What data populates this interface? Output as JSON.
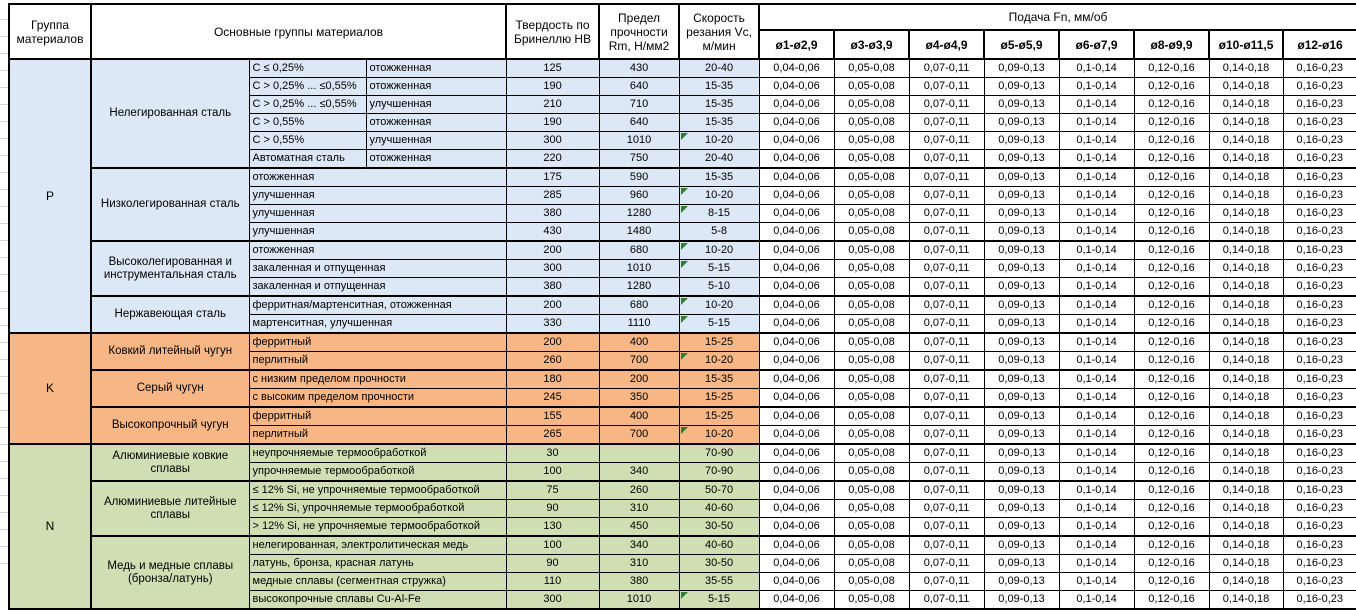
{
  "colors": {
    "group_P_fill": "#dce8f5",
    "group_K_fill": "#f7b685",
    "group_N_fill": "#d0dfb3",
    "error_indicator": "#2e7d32",
    "grid_border": "#000000"
  },
  "header": {
    "group": "Группа материалов",
    "main": "Основные группы материалов",
    "hb": "Твердость по Бринеллю HB",
    "rm": "Предел прочности Rm, Н/мм2",
    "vc": "Скорость резания Vc, м/мин",
    "feed": "Подача Fn, мм/об",
    "feed_cols": [
      "ø1-ø2,9",
      "ø3-ø3,9",
      "ø4-ø4,9",
      "ø5-ø5,9",
      "ø6-ø7,9",
      "ø8-ø9,9",
      "ø10-ø11,5",
      "ø12-ø16"
    ]
  },
  "feed_values": [
    "0,04-0,06",
    "0,05-0,08",
    "0,07-0,11",
    "0,09-0,13",
    "0,1-0,14",
    "0,12-0,16",
    "0,14-0,18",
    "0,16-0,23"
  ],
  "groups": [
    {
      "code": "P",
      "subgroups": [
        {
          "name": "Нелегированная сталь",
          "split": true,
          "rows": [
            {
              "spec": "C ≤ 0,25%",
              "state": "отожженная",
              "hb": "125",
              "rm": "430",
              "vc": "20-40",
              "tri": false
            },
            {
              "spec": "C > 0,25% ... ≤0,55%",
              "state": "отожженная",
              "hb": "190",
              "rm": "640",
              "vc": "15-35",
              "tri": false
            },
            {
              "spec": "C > 0,25% ... ≤0,55%",
              "state": "улучшенная",
              "hb": "210",
              "rm": "710",
              "vc": "15-35",
              "tri": false
            },
            {
              "spec": "C > 0,55%",
              "state": "отожженная",
              "hb": "190",
              "rm": "640",
              "vc": "15-35",
              "tri": false
            },
            {
              "spec": "C > 0,55%",
              "state": "улучшенная",
              "hb": "300",
              "rm": "1010",
              "vc": "10-20",
              "tri": true
            },
            {
              "spec": "Автоматная сталь",
              "state": "отожженная",
              "hb": "220",
              "rm": "750",
              "vc": "20-40",
              "tri": false
            }
          ]
        },
        {
          "name": "Низколегированная сталь",
          "split": false,
          "rows": [
            {
              "desc": "отожженная",
              "hb": "175",
              "rm": "590",
              "vc": "15-35",
              "tri": false
            },
            {
              "desc": "улучшенная",
              "hb": "285",
              "rm": "960",
              "vc": "10-20",
              "tri": true
            },
            {
              "desc": "улучшенная",
              "hb": "380",
              "rm": "1280",
              "vc": "8-15",
              "tri": true
            },
            {
              "desc": "улучшенная",
              "hb": "430",
              "rm": "1480",
              "vc": "5-8",
              "tri": false
            }
          ]
        },
        {
          "name": "Высоколегированная и инструментальная сталь",
          "split": false,
          "rows": [
            {
              "desc": "отожженная",
              "hb": "200",
              "rm": "680",
              "vc": "10-20",
              "tri": true
            },
            {
              "desc": "закаленная и отпущенная",
              "hb": "300",
              "rm": "1010",
              "vc": "5-15",
              "tri": true
            },
            {
              "desc": "закаленная и отпущенная",
              "hb": "380",
              "rm": "1280",
              "vc": "5-10",
              "tri": false
            }
          ]
        },
        {
          "name": "Нержавеющая сталь",
          "split": false,
          "rows": [
            {
              "desc": "ферритная/мартенситная, отожженная",
              "hb": "200",
              "rm": "680",
              "vc": "10-20",
              "tri": true
            },
            {
              "desc": "мартенситная, улучшенная",
              "hb": "330",
              "rm": "1110",
              "vc": "5-15",
              "tri": true
            }
          ]
        }
      ]
    },
    {
      "code": "K",
      "subgroups": [
        {
          "name": "Ковкий литейный чугун",
          "split": false,
          "rows": [
            {
              "desc": "ферритный",
              "hb": "200",
              "rm": "400",
              "vc": "15-25",
              "tri": false
            },
            {
              "desc": "перлитный",
              "hb": "260",
              "rm": "700",
              "vc": "10-20",
              "tri": true
            }
          ]
        },
        {
          "name": "Серый чугун",
          "split": false,
          "rows": [
            {
              "desc": "с низким пределом прочности",
              "hb": "180",
              "rm": "200",
              "vc": "15-35",
              "tri": false
            },
            {
              "desc": "с высоким пределом прочности",
              "hb": "245",
              "rm": "350",
              "vc": "15-25",
              "tri": false
            }
          ]
        },
        {
          "name": "Высокопрочный чугун",
          "split": false,
          "rows": [
            {
              "desc": "ферритный",
              "hb": "155",
              "rm": "400",
              "vc": "15-25",
              "tri": false
            },
            {
              "desc": "перлитный",
              "hb": "265",
              "rm": "700",
              "vc": "10-20",
              "tri": true
            }
          ]
        }
      ]
    },
    {
      "code": "N",
      "subgroups": [
        {
          "name": "Алюминиевые ковкие сплавы",
          "split": false,
          "rows": [
            {
              "desc": "неупрочняемые термообработкой",
              "hb": "30",
              "rm": "",
              "vc": "70-90",
              "tri": false
            },
            {
              "desc": "упрочняемые термообработкой",
              "hb": "100",
              "rm": "340",
              "vc": "70-90",
              "tri": false
            }
          ]
        },
        {
          "name": "Алюминиевые литейные сплавы",
          "split": false,
          "rows": [
            {
              "desc": "≤ 12% Si, не упрочняемые термообработкой",
              "hb": "75",
              "rm": "260",
              "vc": "50-70",
              "tri": false
            },
            {
              "desc": "≤ 12% Si, упрочняемые термообработкой",
              "hb": "90",
              "rm": "310",
              "vc": "40-60",
              "tri": false
            },
            {
              "desc": "> 12% Si, не упрочняемые термообработкой",
              "hb": "130",
              "rm": "450",
              "vc": "30-50",
              "tri": false
            }
          ]
        },
        {
          "name": "Медь и медные сплавы (бронза/латунь)",
          "split": false,
          "rows": [
            {
              "desc": "нелегированная, электролитическая медь",
              "hb": "100",
              "rm": "340",
              "vc": "40-60",
              "tri": false
            },
            {
              "desc": "латунь, бронза, красная латунь",
              "hb": "90",
              "rm": "310",
              "vc": "30-50",
              "tri": false
            },
            {
              "desc": "медные сплавы (сегментная стружка)",
              "hb": "110",
              "rm": "380",
              "vc": "35-55",
              "tri": false
            },
            {
              "desc": "высокопрочные сплавы Cu-Al-Fe",
              "hb": "300",
              "rm": "1010",
              "vc": "5-15",
              "tri": true
            }
          ]
        }
      ]
    }
  ]
}
